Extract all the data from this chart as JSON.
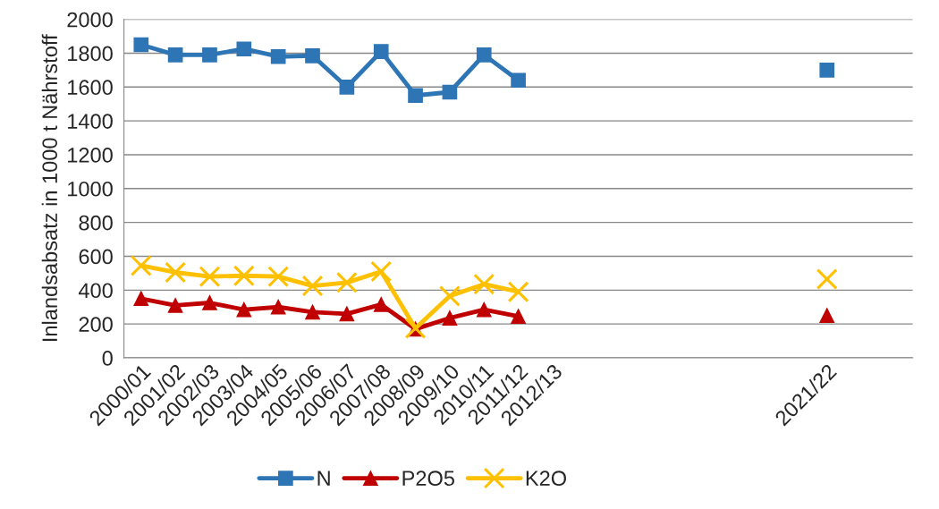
{
  "chart_data": {
    "type": "line",
    "ylabel": "Inlandsabsatz in 1000 t Nährstoff",
    "categories": [
      "2000/01",
      "2001/02",
      "2002/03",
      "2003/04",
      "2004/05",
      "2005/06",
      "2006/07",
      "2007/08",
      "2008/09",
      "2009/10",
      "2010/11",
      "2011/12",
      "2012/13",
      null,
      null,
      null,
      null,
      null,
      null,
      null,
      "2021/22",
      null,
      null
    ],
    "series": [
      {
        "name": "N",
        "color": "#2e75b6",
        "marker": "square",
        "values": [
          1850,
          1790,
          1790,
          1825,
          1780,
          1785,
          1600,
          1810,
          1550,
          1570,
          1790,
          1640,
          null,
          null,
          null,
          null,
          null,
          null,
          null,
          null,
          1700,
          null,
          null
        ]
      },
      {
        "name": "P2O5",
        "color": "#c00000",
        "marker": "triangle",
        "values": [
          350,
          310,
          325,
          285,
          300,
          270,
          260,
          315,
          170,
          235,
          285,
          245,
          null,
          null,
          null,
          null,
          null,
          null,
          null,
          null,
          250,
          null,
          null
        ]
      },
      {
        "name": "K2O",
        "color": "#ffc000",
        "marker": "cross",
        "values": [
          545,
          505,
          480,
          485,
          480,
          425,
          445,
          510,
          175,
          365,
          435,
          390,
          null,
          null,
          null,
          null,
          null,
          null,
          null,
          null,
          465,
          null,
          null
        ]
      }
    ],
    "ylim": [
      0,
      2000
    ],
    "yticks": [
      0,
      200,
      400,
      600,
      800,
      1000,
      1200,
      1400,
      1600,
      1800,
      2000
    ],
    "grid": "y",
    "legend": "bottom",
    "line_style": "solid"
  }
}
